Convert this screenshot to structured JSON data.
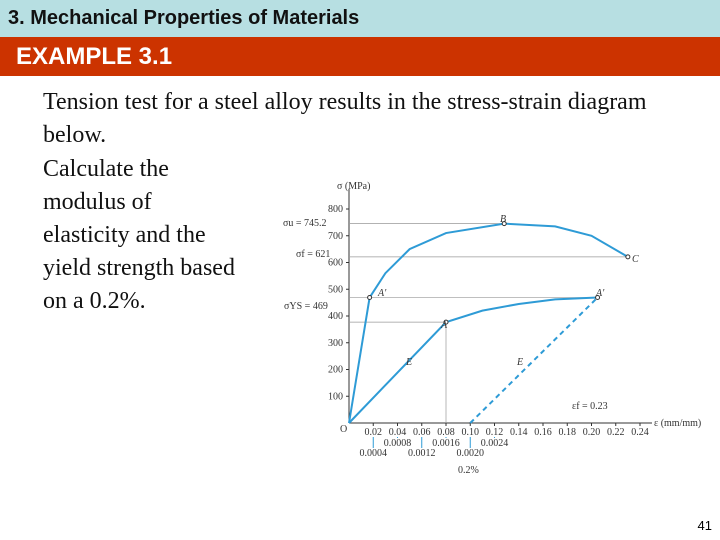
{
  "header": {
    "title": "3. Mechanical Properties of Materials",
    "banner": "EXAMPLE 3.1"
  },
  "body": {
    "paragraphs": [
      "Tension test for a steel alloy results in the stress-strain diagram below.",
      "Calculate the modulus of elasticity and the yield strength based on a 0.2%."
    ]
  },
  "page_number": "41",
  "chart_data": {
    "type": "line",
    "y_label": "σ (MPa)",
    "x_label": "ε (mm/mm)",
    "xlim": [
      0,
      0.24
    ],
    "x2lim": [
      0,
      0.0048
    ],
    "ylim": [
      0,
      800
    ],
    "xticks": [
      0.02,
      0.04,
      0.06,
      0.08,
      {
        "value": 0.1,
        "label": "0.10"
      },
      0.12,
      0.14,
      0.16,
      0.18,
      {
        "value": 0.2,
        "label": "0.20"
      },
      0.22,
      0.24
    ],
    "x2ticks": [
      0.0004,
      0.0008,
      0.0012,
      0.0016,
      {
        "value": 0.002,
        "label": "0.0020"
      },
      0.0024
    ],
    "yticks": [
      100,
      200,
      300,
      400,
      500,
      600,
      700,
      800
    ],
    "series": [
      {
        "color": "#2e9bd6",
        "x": [
          0,
          0.017,
          0.03,
          0.05,
          0.08,
          0.128,
          0.17,
          0.2,
          0.23
        ],
        "values": [
          0,
          469,
          560,
          650,
          710,
          745.2,
          735,
          700,
          621
        ]
      },
      {
        "color": "#2e9bd6",
        "axis": "x2",
        "x": [
          0,
          0.0016,
          0.0022,
          0.0028,
          0.0034,
          0.0041
        ],
        "values": [
          0,
          377,
          420,
          445,
          462,
          469
        ]
      },
      {
        "color": "#2e9bd6",
        "axis": "x2",
        "dashed": true,
        "x": [
          0.002,
          0.0041
        ],
        "values": [
          0,
          469
        ]
      }
    ],
    "annotations": [
      "O",
      "σu = 745.2",
      "σf = 621",
      "σYS = 469",
      "B",
      "C",
      "A'",
      "A",
      "A'",
      "E",
      "E",
      "εf = 0.23",
      "0.2%"
    ]
  }
}
